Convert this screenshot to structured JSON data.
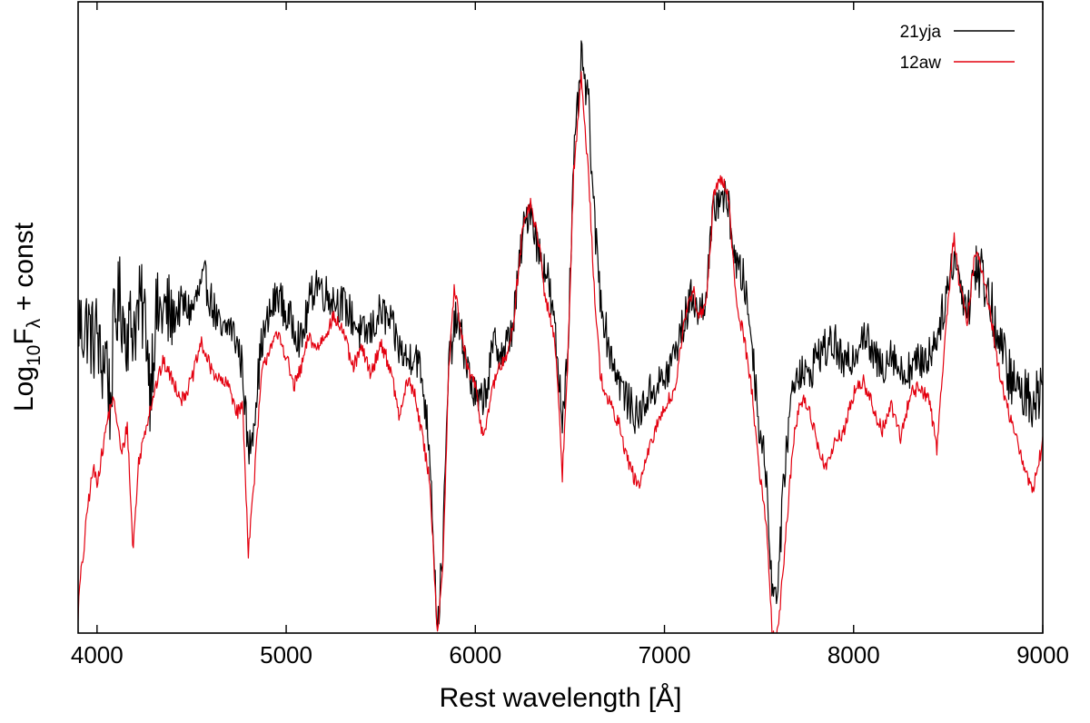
{
  "chart_data": {
    "type": "line",
    "title": "",
    "xlabel": "Rest wavelength [Å]",
    "ylabel": "Log10Fλ + const",
    "ylabel_parts": {
      "base": "Log",
      "sub1": "10",
      "mid": "F",
      "sub2": "λ",
      "tail": " + const"
    },
    "xlim": [
      3900,
      9000
    ],
    "ylim": [
      0,
      10
    ],
    "xticks": [
      4000,
      5000,
      6000,
      7000,
      8000,
      9000
    ],
    "xtick_labels": [
      "4000",
      "5000",
      "6000",
      "7000",
      "8000",
      "9000"
    ],
    "yticks_labeled": false,
    "legend_position": "top-right",
    "series": [
      {
        "name": "21yja",
        "color": "#000000",
        "noise": 0.32,
        "points": [
          [
            3900,
            5.0
          ],
          [
            3920,
            4.8
          ],
          [
            3950,
            4.9
          ],
          [
            3980,
            4.6
          ],
          [
            4000,
            4.8
          ],
          [
            4020,
            4.2
          ],
          [
            4050,
            4.5
          ],
          [
            4070,
            3.5
          ],
          [
            4090,
            4.9
          ],
          [
            4120,
            5.3
          ],
          [
            4150,
            4.8
          ],
          [
            4200,
            4.9
          ],
          [
            4230,
            5.2
          ],
          [
            4260,
            4.9
          ],
          [
            4280,
            3.9
          ],
          [
            4310,
            5.0
          ],
          [
            4350,
            5.1
          ],
          [
            4400,
            5.0
          ],
          [
            4450,
            5.2
          ],
          [
            4500,
            5.1
          ],
          [
            4540,
            5.4
          ],
          [
            4570,
            5.6
          ],
          [
            4620,
            5.1
          ],
          [
            4660,
            4.7
          ],
          [
            4700,
            4.9
          ],
          [
            4740,
            4.6
          ],
          [
            4770,
            4.2
          ],
          [
            4800,
            2.8
          ],
          [
            4830,
            3.4
          ],
          [
            4870,
            4.6
          ],
          [
            4920,
            5.1
          ],
          [
            4960,
            5.4
          ],
          [
            5000,
            5.0
          ],
          [
            5040,
            4.9
          ],
          [
            5080,
            4.6
          ],
          [
            5120,
            5.2
          ],
          [
            5160,
            5.6
          ],
          [
            5200,
            5.4
          ],
          [
            5250,
            5.3
          ],
          [
            5300,
            5.2
          ],
          [
            5350,
            5.0
          ],
          [
            5400,
            4.7
          ],
          [
            5450,
            4.8
          ],
          [
            5500,
            5.1
          ],
          [
            5550,
            4.9
          ],
          [
            5600,
            4.5
          ],
          [
            5640,
            4.3
          ],
          [
            5680,
            4.5
          ],
          [
            5720,
            4.0
          ],
          [
            5760,
            2.9
          ],
          [
            5800,
            0.0
          ],
          [
            5830,
            1.5
          ],
          [
            5860,
            4.3
          ],
          [
            5900,
            5.0
          ],
          [
            5940,
            4.5
          ],
          [
            5980,
            3.9
          ],
          [
            6020,
            3.6
          ],
          [
            6060,
            3.9
          ],
          [
            6100,
            4.6
          ],
          [
            6150,
            4.4
          ],
          [
            6200,
            4.9
          ],
          [
            6250,
            6.3
          ],
          [
            6290,
            6.8
          ],
          [
            6330,
            6.1
          ],
          [
            6380,
            5.7
          ],
          [
            6420,
            4.8
          ],
          [
            6460,
            3.4
          ],
          [
            6490,
            4.6
          ],
          [
            6520,
            7.4
          ],
          [
            6560,
            9.1
          ],
          [
            6600,
            8.3
          ],
          [
            6630,
            6.5
          ],
          [
            6660,
            5.4
          ],
          [
            6700,
            4.6
          ],
          [
            6760,
            4.0
          ],
          [
            6800,
            3.7
          ],
          [
            6860,
            3.4
          ],
          [
            6900,
            3.7
          ],
          [
            6950,
            3.9
          ],
          [
            7000,
            4.0
          ],
          [
            7050,
            4.4
          ],
          [
            7100,
            4.9
          ],
          [
            7150,
            5.4
          ],
          [
            7180,
            5.0
          ],
          [
            7220,
            5.4
          ],
          [
            7260,
            6.7
          ],
          [
            7300,
            7.0
          ],
          [
            7340,
            6.7
          ],
          [
            7380,
            5.8
          ],
          [
            7420,
            5.6
          ],
          [
            7460,
            4.7
          ],
          [
            7500,
            3.3
          ],
          [
            7540,
            2.5
          ],
          [
            7570,
            0.6
          ],
          [
            7600,
            0.8
          ],
          [
            7640,
            2.8
          ],
          [
            7680,
            4.0
          ],
          [
            7720,
            4.2
          ],
          [
            7760,
            4.0
          ],
          [
            7800,
            4.4
          ],
          [
            7850,
            4.5
          ],
          [
            7900,
            4.6
          ],
          [
            7950,
            4.2
          ],
          [
            8000,
            4.4
          ],
          [
            8050,
            4.8
          ],
          [
            8100,
            4.4
          ],
          [
            8150,
            4.2
          ],
          [
            8200,
            4.5
          ],
          [
            8250,
            4.1
          ],
          [
            8300,
            4.2
          ],
          [
            8350,
            4.3
          ],
          [
            8400,
            4.4
          ],
          [
            8450,
            4.8
          ],
          [
            8500,
            5.5
          ],
          [
            8530,
            6.0
          ],
          [
            8560,
            5.6
          ],
          [
            8600,
            5.1
          ],
          [
            8640,
            5.8
          ],
          [
            8680,
            5.7
          ],
          [
            8720,
            5.3
          ],
          [
            8760,
            4.7
          ],
          [
            8800,
            4.3
          ],
          [
            8850,
            3.9
          ],
          [
            8900,
            3.8
          ],
          [
            8950,
            3.7
          ],
          [
            9000,
            3.9
          ]
        ]
      },
      {
        "name": "12aw",
        "color": "#e3000f",
        "noise": 0.12,
        "points": [
          [
            3900,
            0.3
          ],
          [
            3910,
            0.8
          ],
          [
            3930,
            1.3
          ],
          [
            3950,
            2.0
          ],
          [
            3980,
            2.6
          ],
          [
            4000,
            2.4
          ],
          [
            4030,
            2.9
          ],
          [
            4050,
            3.3
          ],
          [
            4080,
            3.7
          ],
          [
            4100,
            3.5
          ],
          [
            4130,
            2.8
          ],
          [
            4160,
            3.3
          ],
          [
            4190,
            1.3
          ],
          [
            4220,
            2.7
          ],
          [
            4260,
            3.3
          ],
          [
            4300,
            3.8
          ],
          [
            4350,
            4.3
          ],
          [
            4400,
            4.0
          ],
          [
            4450,
            3.7
          ],
          [
            4500,
            4.0
          ],
          [
            4550,
            4.6
          ],
          [
            4600,
            4.2
          ],
          [
            4650,
            4.0
          ],
          [
            4700,
            3.9
          ],
          [
            4740,
            3.5
          ],
          [
            4770,
            3.6
          ],
          [
            4800,
            1.3
          ],
          [
            4830,
            2.4
          ],
          [
            4870,
            4.1
          ],
          [
            4920,
            4.6
          ],
          [
            4960,
            4.7
          ],
          [
            5000,
            4.4
          ],
          [
            5040,
            3.9
          ],
          [
            5080,
            4.2
          ],
          [
            5120,
            4.7
          ],
          [
            5160,
            4.5
          ],
          [
            5200,
            4.7
          ],
          [
            5250,
            5.0
          ],
          [
            5300,
            4.8
          ],
          [
            5350,
            4.2
          ],
          [
            5400,
            4.5
          ],
          [
            5450,
            4.1
          ],
          [
            5500,
            4.6
          ],
          [
            5550,
            4.2
          ],
          [
            5600,
            3.4
          ],
          [
            5640,
            4.0
          ],
          [
            5680,
            3.8
          ],
          [
            5720,
            3.1
          ],
          [
            5760,
            2.4
          ],
          [
            5800,
            0.0
          ],
          [
            5830,
            1.2
          ],
          [
            5860,
            4.2
          ],
          [
            5890,
            5.5
          ],
          [
            5920,
            4.8
          ],
          [
            5960,
            4.2
          ],
          [
            6000,
            3.9
          ],
          [
            6040,
            3.1
          ],
          [
            6080,
            3.7
          ],
          [
            6120,
            4.2
          ],
          [
            6160,
            4.3
          ],
          [
            6200,
            4.9
          ],
          [
            6250,
            6.4
          ],
          [
            6290,
            6.8
          ],
          [
            6330,
            6.3
          ],
          [
            6370,
            5.3
          ],
          [
            6420,
            4.7
          ],
          [
            6460,
            2.5
          ],
          [
            6490,
            4.4
          ],
          [
            6520,
            7.3
          ],
          [
            6560,
            8.8
          ],
          [
            6600,
            7.2
          ],
          [
            6630,
            5.4
          ],
          [
            6660,
            4.1
          ],
          [
            6700,
            3.7
          ],
          [
            6760,
            3.3
          ],
          [
            6800,
            2.8
          ],
          [
            6860,
            2.3
          ],
          [
            6900,
            2.7
          ],
          [
            6950,
            3.2
          ],
          [
            7000,
            3.6
          ],
          [
            7050,
            3.8
          ],
          [
            7100,
            4.8
          ],
          [
            7150,
            5.5
          ],
          [
            7180,
            5.0
          ],
          [
            7220,
            5.2
          ],
          [
            7260,
            6.9
          ],
          [
            7300,
            7.2
          ],
          [
            7340,
            6.9
          ],
          [
            7380,
            5.2
          ],
          [
            7420,
            4.7
          ],
          [
            7460,
            3.9
          ],
          [
            7500,
            2.6
          ],
          [
            7540,
            1.7
          ],
          [
            7570,
            0.0
          ],
          [
            7600,
            0.0
          ],
          [
            7640,
            1.5
          ],
          [
            7680,
            3.0
          ],
          [
            7720,
            3.7
          ],
          [
            7760,
            3.6
          ],
          [
            7800,
            3.1
          ],
          [
            7850,
            2.6
          ],
          [
            7900,
            3.0
          ],
          [
            7950,
            3.2
          ],
          [
            8000,
            3.8
          ],
          [
            8050,
            4.0
          ],
          [
            8100,
            3.6
          ],
          [
            8150,
            3.2
          ],
          [
            8200,
            3.6
          ],
          [
            8250,
            3.1
          ],
          [
            8300,
            3.8
          ],
          [
            8350,
            3.9
          ],
          [
            8400,
            3.7
          ],
          [
            8440,
            2.9
          ],
          [
            8480,
            4.6
          ],
          [
            8530,
            6.3
          ],
          [
            8560,
            5.5
          ],
          [
            8600,
            4.9
          ],
          [
            8640,
            6.0
          ],
          [
            8680,
            5.8
          ],
          [
            8720,
            5.1
          ],
          [
            8760,
            4.3
          ],
          [
            8800,
            3.7
          ],
          [
            8850,
            3.2
          ],
          [
            8900,
            2.6
          ],
          [
            8950,
            2.3
          ],
          [
            9000,
            3.0
          ]
        ]
      }
    ]
  }
}
